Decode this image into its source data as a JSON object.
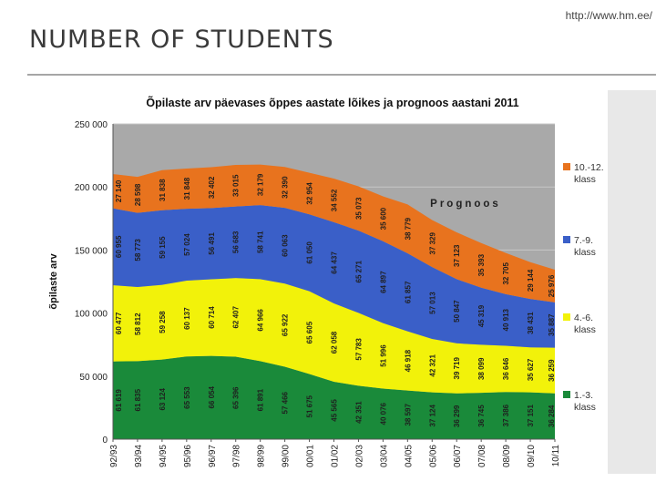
{
  "slide": {
    "title": "NUMBER OF STUDENTS",
    "source_url": "http://www.hm.ee/"
  },
  "chart_data": {
    "type": "area",
    "stacked": true,
    "title": "Õpilaste arv päevases õppes aastate lõikes ja prognoos aastani 2011",
    "ylabel": "õpilaste arv",
    "xlabel": "",
    "ylim": [
      0,
      250000
    ],
    "y_ticks": [
      "0",
      "50 000",
      "100 000",
      "150 000",
      "200 000",
      "250 000"
    ],
    "annotation": "Prognoos",
    "categories": [
      "92/93",
      "93/94",
      "94/95",
      "95/96",
      "96/97",
      "97/98",
      "98/99",
      "99/00",
      "00/01",
      "01/02",
      "02/03",
      "03/04",
      "04/05",
      "05/06",
      "06/07",
      "07/08",
      "08/09",
      "09/10",
      "10/11"
    ],
    "series": [
      {
        "name": "1.-3. klass",
        "color": "#1a8a3a",
        "values": [
          61619,
          61835,
          63124,
          65553,
          66054,
          65396,
          61891,
          57466,
          51675,
          45565,
          42351,
          40076,
          38597,
          37124,
          36299,
          36745,
          37386,
          37151,
          36284
        ],
        "labels": [
          "61 619",
          "61 835",
          "63 124",
          "65 553",
          "66 054",
          "65 396",
          "61 891",
          "57 466",
          "51 675",
          "45 565",
          "42 351",
          "40 076",
          "38 597",
          "37 124",
          "36 299",
          "36 745",
          "37 386",
          "37 151",
          "36 284"
        ]
      },
      {
        "name": "4.-6. klass",
        "color": "#f2f20a",
        "values": [
          60477,
          58812,
          59258,
          60137,
          60714,
          62407,
          64966,
          65922,
          65605,
          62058,
          57783,
          51996,
          46918,
          42321,
          39719,
          38099,
          36646,
          35627,
          36259
        ],
        "labels": [
          "60 477",
          "58 812",
          "59 258",
          "60 137",
          "60 714",
          "62 407",
          "64 966",
          "65 922",
          "65 605",
          "62 058",
          "57 783",
          "51 996",
          "46 918",
          "42 321",
          "39 719",
          "38 099",
          "36 646",
          "35 627",
          "36 259"
        ]
      },
      {
        "name": "7.-9. klass",
        "color": "#3a5fc8",
        "values": [
          60955,
          58773,
          59155,
          57024,
          56491,
          56683,
          58741,
          60063,
          61050,
          64437,
          65271,
          64897,
          61857,
          57013,
          50847,
          45319,
          40913,
          38431,
          35887
        ],
        "labels": [
          "60 955",
          "58 773",
          "59 155",
          "57 024",
          "56 491",
          "56 683",
          "58 741",
          "60 063",
          "61 050",
          "64 437",
          "65 271",
          "64 897",
          "61 857",
          "57 013",
          "50 847",
          "45 319",
          "40 913",
          "38 431",
          "35 887"
        ]
      },
      {
        "name": "10.-12. klass",
        "color": "#e8731e",
        "values": [
          27140,
          28598,
          31838,
          31848,
          32402,
          33015,
          32179,
          32390,
          32954,
          34552,
          35073,
          35600,
          38779,
          37329,
          37123,
          35393,
          32705,
          29144,
          25976
        ],
        "labels": [
          "27 140",
          "28 598",
          "31 838",
          "31 848",
          "32 402",
          "33 015",
          "32 179",
          "32 390",
          "32 954",
          "34 552",
          "35 073",
          "35 600",
          "38 779",
          "37 329",
          "37 123",
          "35 393",
          "32 705",
          "29 144",
          "25 976"
        ]
      }
    ],
    "legend_position": "right",
    "grid": true
  }
}
